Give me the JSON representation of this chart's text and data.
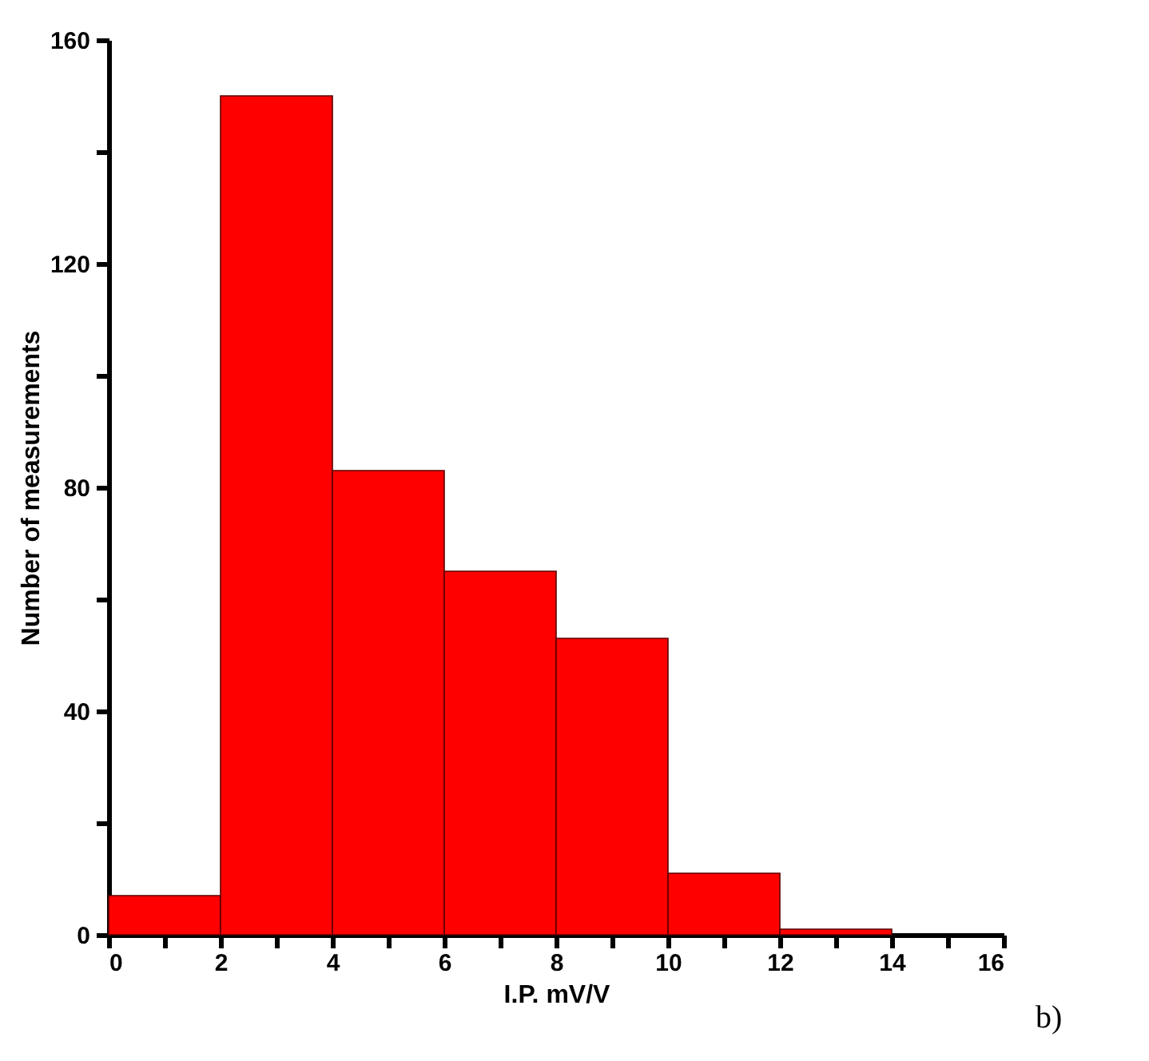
{
  "chart_data": {
    "type": "histogram",
    "xlabel": "I.P. mV/V",
    "ylabel": "Number of measurements",
    "bins": [
      0,
      2,
      4,
      6,
      8,
      10,
      12,
      14
    ],
    "values": [
      7,
      150,
      83,
      65,
      53,
      11,
      1
    ],
    "color": "#ff0000",
    "xlim": [
      0,
      16
    ],
    "ylim": [
      0,
      160
    ],
    "xticks": [
      0,
      {
        "value": 1,
        "label": null
      },
      2,
      {
        "value": 3,
        "label": null
      },
      4,
      {
        "value": 5,
        "label": null
      },
      6,
      {
        "value": 7,
        "label": null
      },
      8,
      {
        "value": 9,
        "label": null
      },
      10,
      {
        "value": 11,
        "label": null
      },
      12,
      {
        "value": 13,
        "label": null
      },
      14,
      {
        "value": 15,
        "label": null
      },
      16
    ],
    "yticks": [
      0,
      {
        "value": 20,
        "label": null
      },
      40,
      {
        "value": 60,
        "label": null
      },
      80,
      {
        "value": 100,
        "label": null
      },
      120,
      {
        "value": 140,
        "label": null
      },
      160
    ],
    "grid": false,
    "annotations": [
      "b)"
    ]
  }
}
